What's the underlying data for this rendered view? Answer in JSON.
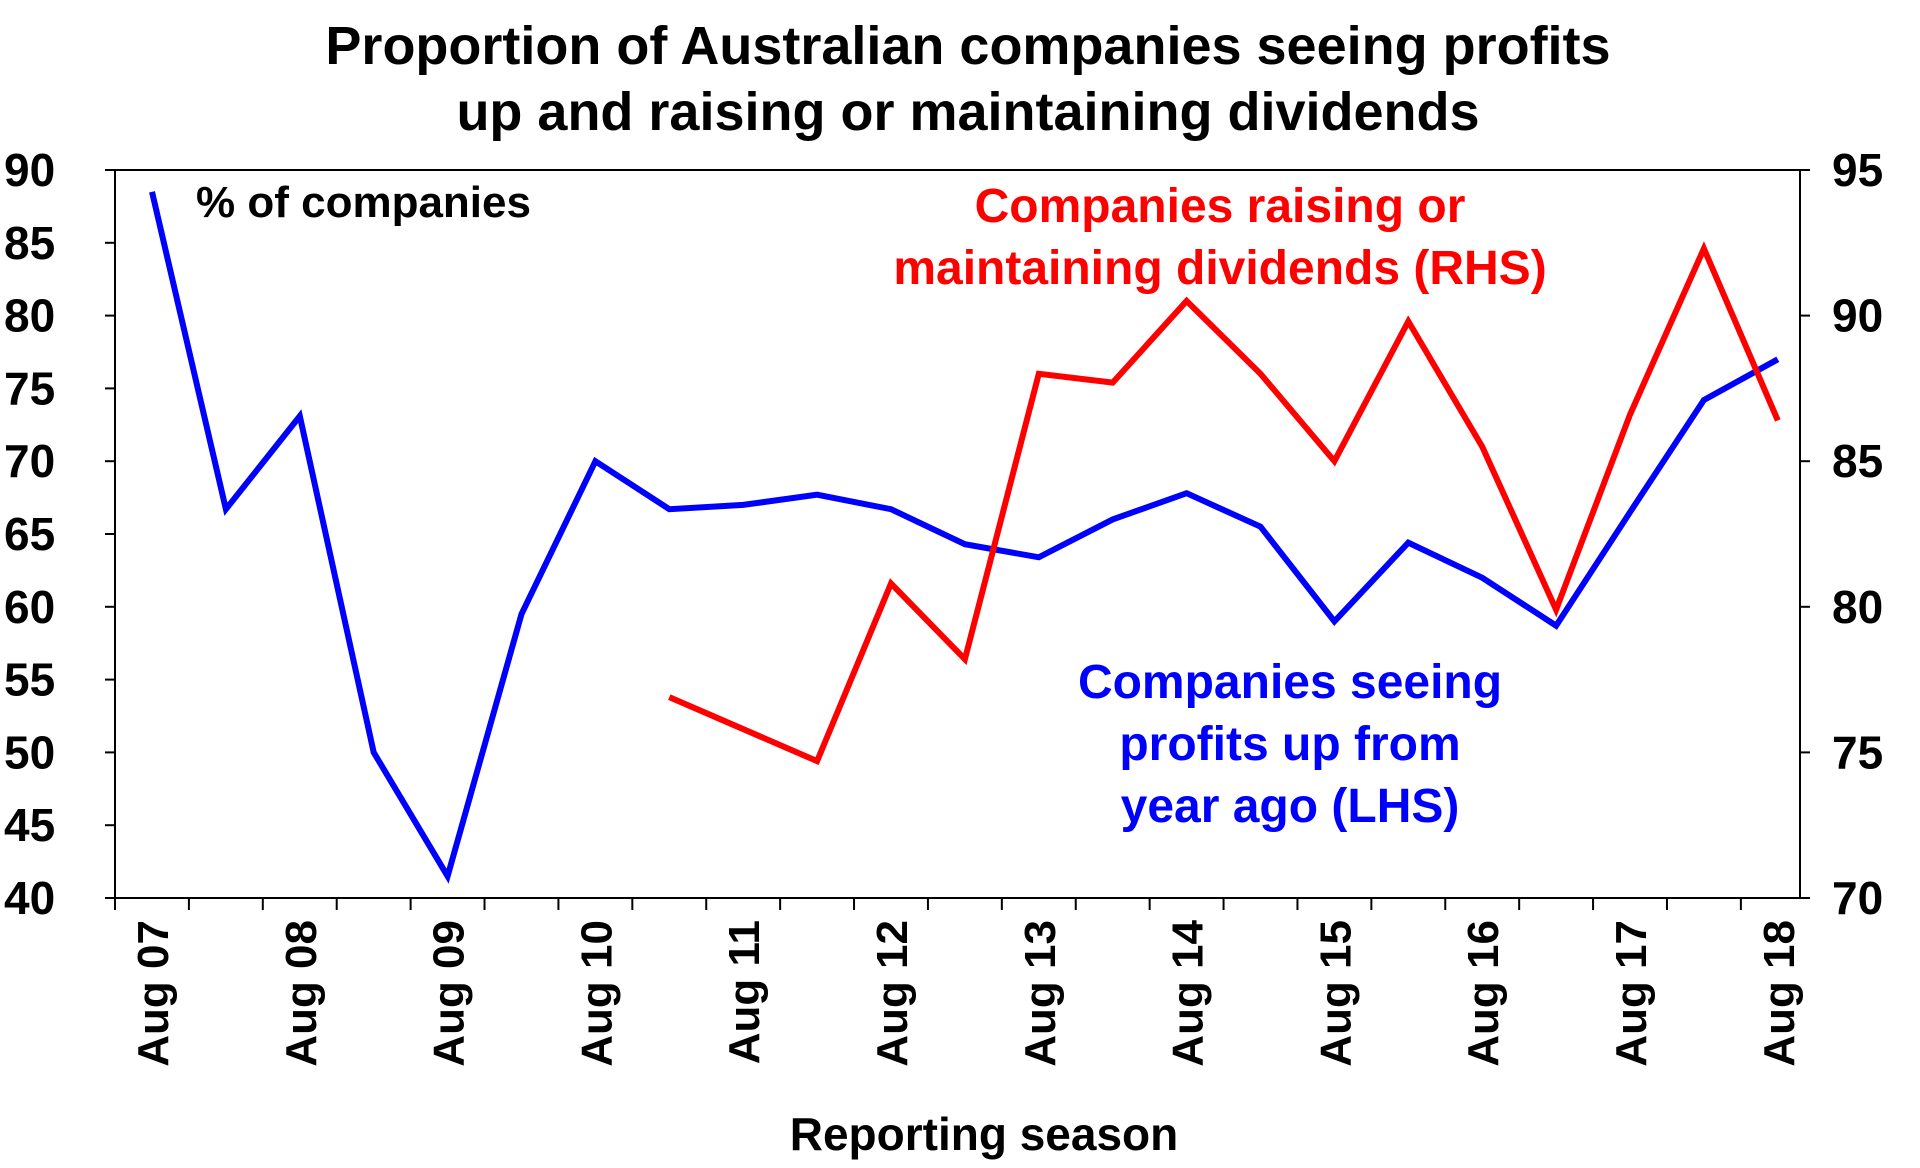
{
  "chart_data": {
    "type": "line",
    "title": [
      "Proportion of Australian companies seeing profits",
      "up and raising or maintaining dividends"
    ],
    "xlabel": "Reporting season",
    "ylabel": "% of companies",
    "y_left": {
      "min": 40,
      "max": 90,
      "step": 5,
      "ticks": [
        "40",
        "45",
        "50",
        "55",
        "60",
        "65",
        "70",
        "75",
        "80",
        "85",
        "90"
      ]
    },
    "y_right": {
      "min": 70,
      "max": 95,
      "step": 5,
      "ticks": [
        "70",
        "75",
        "80",
        "85",
        "90",
        "95"
      ]
    },
    "x_range": [
      0,
      22.8
    ],
    "x_ticks": [
      "Aug 07",
      "Aug 08",
      "Aug 09",
      "Aug 10",
      "Aug 11",
      "Aug 12",
      "Aug 13",
      "Aug 14",
      "Aug 15",
      "Aug 16",
      "Aug 17",
      "Aug 18"
    ],
    "series": [
      {
        "name": "Companies seeing profits up from year ago (LHS)",
        "axis": "left",
        "color": "#0000ff",
        "label_lines": [
          "Companies seeing",
          "profits up from",
          "year ago (LHS)"
        ],
        "x": [
          0.5,
          1.5,
          2.5,
          3.5,
          4.5,
          5.5,
          6.5,
          7.5,
          8.5,
          9.5,
          10.5,
          11.5,
          12.5,
          13.5,
          14.5,
          15.5,
          16.5,
          17.5,
          18.5,
          19.5,
          20.5,
          21.5,
          22.5
        ],
        "values": [
          88.5,
          66.7,
          73.1,
          50,
          41.5,
          59.5,
          70,
          66.7,
          67,
          67.7,
          66.7,
          64.3,
          63.4,
          66,
          67.8,
          65.5,
          59,
          64.4,
          62,
          58.7,
          66.5,
          74.2,
          77
        ]
      },
      {
        "name": "Companies raising or maintaining dividends (RHS)",
        "axis": "right",
        "color": "#ff0000",
        "label_lines": [
          "Companies raising or",
          "maintaining dividends (RHS)"
        ],
        "x": [
          7.5,
          9.5,
          10.5,
          11.5,
          12.5,
          13.5,
          14.5,
          15.5,
          16.5,
          17.5,
          18.5,
          19.5,
          20.5,
          21.5,
          22.5
        ],
        "values": [
          76.9,
          74.7,
          80.8,
          78.2,
          88,
          87.7,
          90.5,
          88,
          85,
          89.8,
          85.5,
          79.9,
          86.6,
          92.3,
          86.4
        ]
      }
    ]
  }
}
